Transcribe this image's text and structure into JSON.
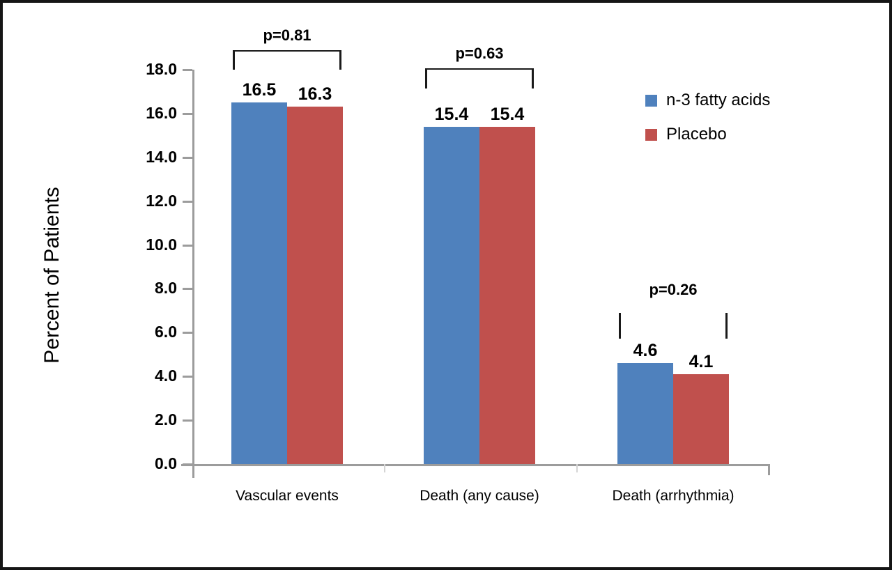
{
  "chart_data": {
    "type": "bar",
    "title": "",
    "ylabel": "Percent of Patients",
    "xlabel": "",
    "categories": [
      "Vascular events",
      "Death (any cause)",
      "Death (arrhythmia)"
    ],
    "series": [
      {
        "name": "n-3 fatty acids",
        "color": "#4f81bd",
        "values": [
          16.5,
          15.4,
          4.6
        ]
      },
      {
        "name": "Placebo",
        "color": "#c0504d",
        "values": [
          16.3,
          15.4,
          4.1
        ]
      }
    ],
    "p_labels": [
      "p=0.81",
      "p=0.63",
      "p=0.26"
    ],
    "ylim": [
      0,
      18
    ],
    "ytick_step": 2,
    "ytick_labels": [
      "0.0",
      "2.0",
      "4.0",
      "6.0",
      "8.0",
      "10.0",
      "12.0",
      "14.0",
      "16.0",
      "18.0"
    ],
    "grid": false,
    "legend_position": "upper-right",
    "axis_color": "#9c9c9c",
    "text_color": "#000000"
  }
}
